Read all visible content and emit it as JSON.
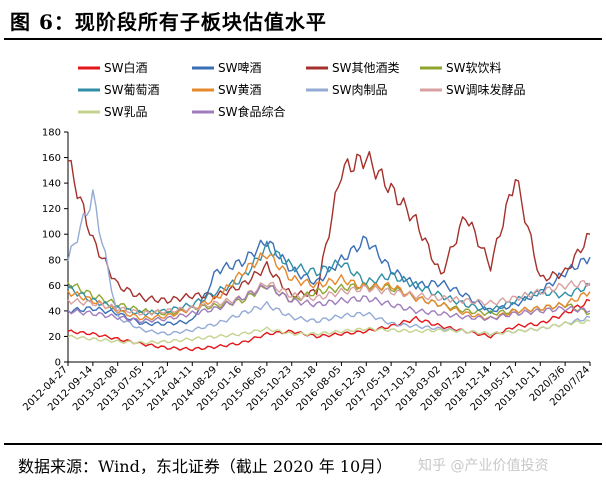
{
  "page": {
    "figure_title": "图 6：现阶段所有子板块估值水平",
    "source_note": "数据来源：Wind，东北证券（截止 2020 年 10月）",
    "watermark": "知乎 @产业价值投资"
  },
  "chart_data": {
    "type": "line",
    "title": "",
    "xlabel": "",
    "ylabel": "",
    "ylim": [
      0,
      180
    ],
    "yticks": [
      0,
      20,
      40,
      60,
      80,
      100,
      120,
      140,
      160,
      180
    ],
    "grid": false,
    "legend_position": "top",
    "x_labels": [
      "2012-04-27",
      "2012-09-14",
      "2013-02-08",
      "2013-07-05",
      "2013-11-22",
      "2014-04-11",
      "2014-08-29",
      "2015-01-16",
      "2015-06-05",
      "2015-10-23",
      "2016-03-18",
      "2016-08-05",
      "2016-12-30",
      "2017-05-19",
      "2017-10-13",
      "2018-03-02",
      "2018-07-20",
      "2018-12-14",
      "2019-05-17",
      "2019-10-11",
      "2020/3/6",
      "2020/7/24"
    ],
    "series": [
      {
        "name": "SW白酒",
        "color": "#e3161a",
        "values": [
          24,
          22,
          18,
          14,
          11,
          10,
          12,
          15,
          22,
          24,
          20,
          22,
          24,
          28,
          34,
          28,
          24,
          20,
          28,
          30,
          38,
          48
        ]
      },
      {
        "name": "SW啤酒",
        "color": "#3a6fb7",
        "values": [
          40,
          42,
          38,
          30,
          30,
          32,
          72,
          78,
          95,
          72,
          62,
          80,
          96,
          72,
          60,
          62,
          52,
          40,
          45,
          55,
          70,
          82
        ]
      },
      {
        "name": "SW其他酒类",
        "color": "#a4312c",
        "values": [
          158,
          95,
          60,
          50,
          48,
          52,
          52,
          60,
          75,
          52,
          55,
          150,
          160,
          135,
          110,
          68,
          115,
          75,
          145,
          65,
          70,
          100
        ]
      },
      {
        "name": "SW软饮料",
        "color": "#8da52e",
        "values": [
          62,
          52,
          45,
          40,
          38,
          42,
          44,
          48,
          60,
          48,
          55,
          58,
          60,
          58,
          50,
          45,
          40,
          38,
          40,
          42,
          45,
          38
        ]
      },
      {
        "name": "SW葡萄酒",
        "color": "#2f8fa6",
        "values": [
          58,
          48,
          42,
          38,
          40,
          45,
          55,
          65,
          90,
          75,
          70,
          78,
          62,
          68,
          60,
          52,
          45,
          40,
          48,
          55,
          52,
          60
        ]
      },
      {
        "name": "SW黄酒",
        "color": "#e6882b",
        "values": [
          55,
          48,
          40,
          34,
          36,
          42,
          50,
          70,
          85,
          65,
          60,
          65,
          58,
          60,
          50,
          45,
          38,
          34,
          40,
          42,
          45,
          55
        ]
      },
      {
        "name": "SW肉制品",
        "color": "#94abd6",
        "values": [
          80,
          130,
          35,
          25,
          22,
          25,
          30,
          38,
          45,
          35,
          32,
          36,
          38,
          30,
          28,
          26,
          24,
          22,
          24,
          26,
          30,
          35
        ]
      },
      {
        "name": "SW调味发酵品",
        "color": "#d8a0a0",
        "values": [
          48,
          46,
          42,
          38,
          40,
          42,
          46,
          50,
          62,
          52,
          50,
          55,
          58,
          55,
          52,
          50,
          48,
          46,
          50,
          55,
          60,
          62
        ]
      },
      {
        "name": "SW乳品",
        "color": "#c4d48f",
        "values": [
          20,
          18,
          16,
          15,
          16,
          18,
          20,
          22,
          26,
          22,
          22,
          24,
          26,
          25,
          24,
          25,
          24,
          22,
          24,
          26,
          30,
          32
        ]
      },
      {
        "name": "SW食品综合",
        "color": "#9f7cbd",
        "values": [
          40,
          38,
          35,
          32,
          34,
          38,
          42,
          50,
          60,
          48,
          45,
          48,
          50,
          45,
          40,
          38,
          35,
          34,
          38,
          40,
          42,
          40
        ]
      }
    ]
  }
}
